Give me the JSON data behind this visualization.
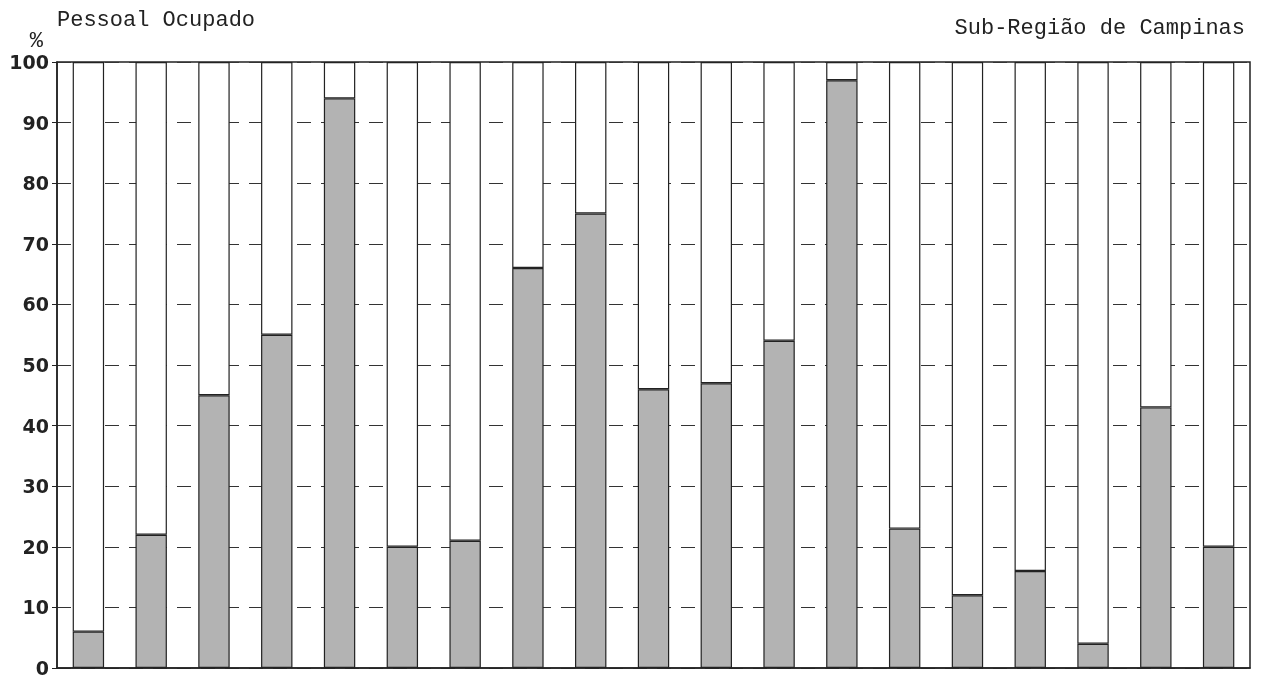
{
  "chart_data": {
    "type": "bar",
    "title": "Pessoal Ocupado",
    "subtitle": "Sub-Região de Campinas",
    "ylabel": "%",
    "stacked": true,
    "categories": [
      null,
      null,
      null,
      null,
      null,
      null,
      null,
      null,
      null,
      null,
      null,
      null,
      null,
      null,
      null,
      null,
      null,
      null,
      null
    ],
    "series": [
      {
        "color": "#b3b3b3",
        "values": [
          6,
          22,
          45,
          55,
          94,
          20,
          21,
          66,
          75,
          46,
          47,
          54,
          97,
          23,
          12,
          16,
          4,
          43,
          20
        ]
      },
      {
        "color": "#ffffff",
        "values": [
          94,
          78,
          55,
          45,
          6,
          80,
          79,
          34,
          25,
          54,
          53,
          46,
          3,
          77,
          88,
          84,
          96,
          57,
          80
        ]
      }
    ],
    "ylim": [
      0,
      100
    ],
    "yticks": [
      0,
      10,
      20,
      30,
      40,
      50,
      60,
      70,
      80,
      90,
      100
    ],
    "grid": "y"
  }
}
